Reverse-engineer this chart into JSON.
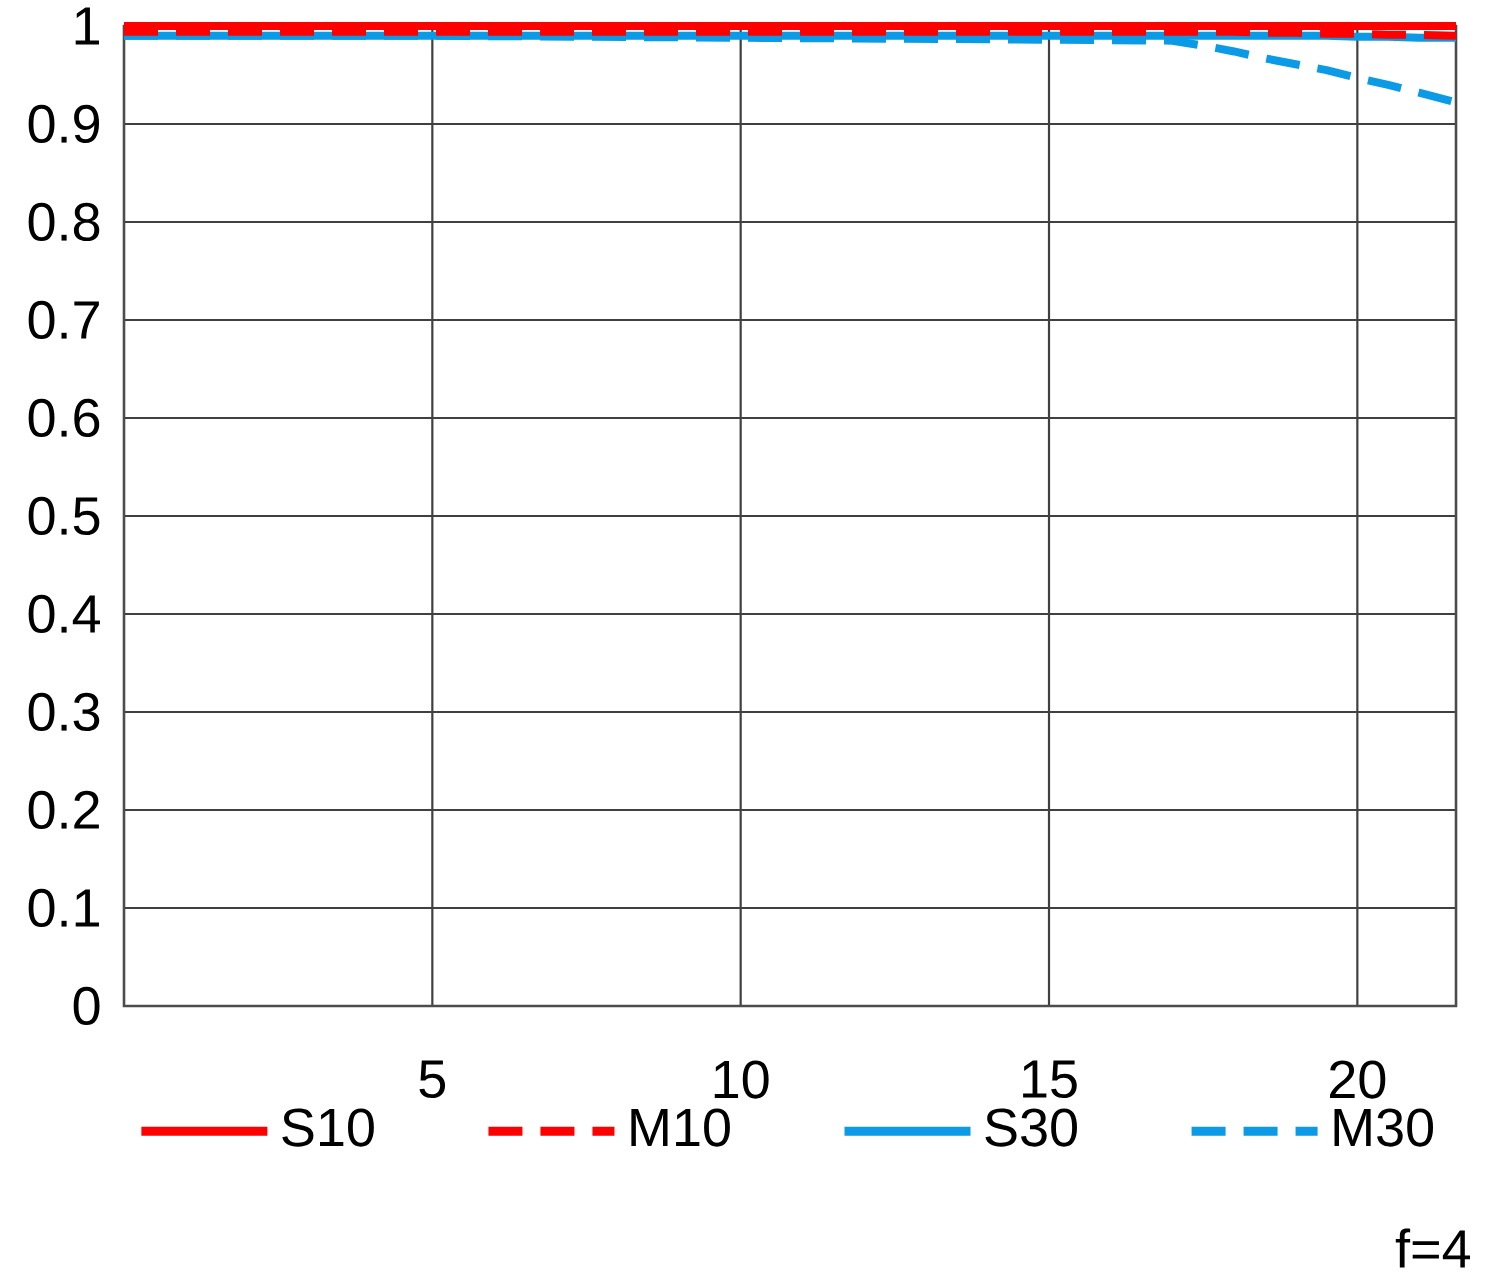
{
  "chart_data": {
    "type": "line",
    "x": [
      0,
      5,
      10,
      15,
      17,
      17.5,
      18,
      18.5,
      19,
      19.5,
      20,
      20.5,
      21,
      21.6
    ],
    "series": [
      {
        "name": "S30",
        "color": "#0a9ae6",
        "line_style": "solid",
        "values": [
          0.99,
          0.99,
          0.99,
          0.99,
          0.99,
          0.99,
          0.99,
          0.99,
          0.99,
          0.99,
          0.989,
          0.989,
          0.988,
          0.988
        ]
      },
      {
        "name": "M30",
        "color": "#0a9ae6",
        "line_style": "dashed",
        "values": [
          0.99,
          0.99,
          0.988,
          0.986,
          0.985,
          0.98,
          0.974,
          0.967,
          0.961,
          0.955,
          0.947,
          0.94,
          0.932,
          0.922
        ]
      },
      {
        "name": "S10",
        "color": "#ff0000",
        "line_style": "solid",
        "values": [
          1,
          1,
          1,
          1,
          1,
          1,
          1,
          1,
          1,
          1,
          1,
          1,
          1,
          1
        ]
      },
      {
        "name": "M10",
        "color": "#ff0000",
        "line_style": "dashed",
        "values": [
          0.994,
          0.994,
          0.994,
          0.994,
          0.994,
          0.994,
          0.994,
          0.993,
          0.993,
          0.992,
          0.992,
          0.991,
          0.991,
          0.99
        ]
      }
    ],
    "xlim": [
      0,
      21.6
    ],
    "ylim": [
      0,
      1
    ],
    "xticks": [
      5,
      10,
      15,
      20
    ],
    "yticks": [
      0,
      0.1,
      0.2,
      0.3,
      0.4,
      0.5,
      0.6,
      0.7,
      0.8,
      0.9,
      1
    ],
    "grid": true,
    "legend": "bottom",
    "annotations": [
      "f=4"
    ]
  }
}
